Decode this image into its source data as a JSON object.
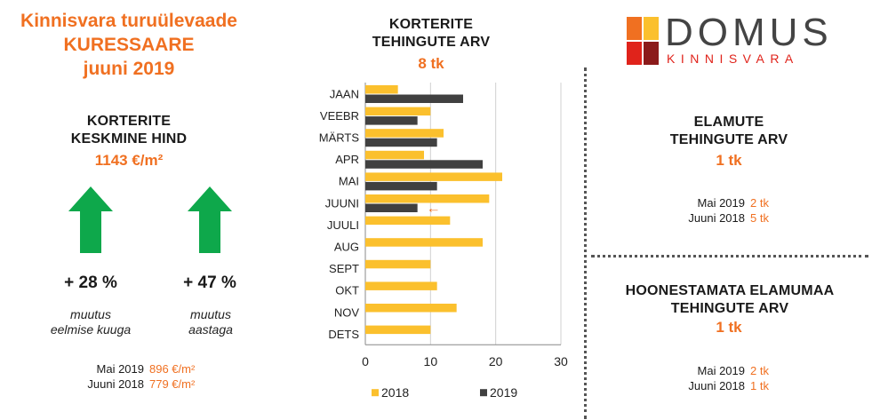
{
  "header": {
    "line1": "Kinnisvara turuülevaade",
    "line2": "KURESSAARE",
    "line3": "juuni 2019"
  },
  "avg_price": {
    "title_line1": "KORTERITE",
    "title_line2": "KESKMINE HIND",
    "value": "1143 €/m²",
    "change_month": {
      "value": "+ 28 %",
      "caption_line1": "muutus",
      "caption_line2": "eelmise kuuga",
      "direction": "up"
    },
    "change_year": {
      "value": "+ 47 %",
      "caption_line1": "muutus",
      "caption_line2": "aastaga",
      "direction": "up"
    },
    "comparisons": [
      {
        "label": "Mai 2019",
        "value": "896 €/m²"
      },
      {
        "label": "Juuni 2018",
        "value": "779 €/m²"
      }
    ]
  },
  "apartments": {
    "title_line1": "KORTERITE",
    "title_line2": "TEHINGUTE ARV",
    "value": "8 tk"
  },
  "chart_data": {
    "type": "bar",
    "orientation": "horizontal",
    "categories": [
      "JAAN",
      "VEEBR",
      "MÄRTS",
      "APR",
      "MAI",
      "JUUNI",
      "JUULI",
      "AUG",
      "SEPT",
      "OKT",
      "NOV",
      "DETS"
    ],
    "series": [
      {
        "name": "2018",
        "color": "#FBC02D",
        "values": [
          5,
          10,
          12,
          9,
          21,
          19,
          13,
          18,
          10,
          11,
          14,
          10
        ]
      },
      {
        "name": "2019",
        "color": "#404040",
        "values": [
          15,
          8,
          11,
          18,
          11,
          8,
          null,
          null,
          null,
          null,
          null,
          null
        ]
      }
    ],
    "xlim": [
      0,
      30
    ],
    "xticks": [
      0,
      10,
      20,
      30
    ],
    "grid": true,
    "legend_position": "bottom",
    "annotation": {
      "category": "JUUNI",
      "symbol": "←",
      "color": "#F07021"
    }
  },
  "logo": {
    "name": "DOMUS",
    "subtitle": "KINNISVARA",
    "colors": [
      "#F07021",
      "#FBC02D",
      "#E0231B",
      "#8B1A1A"
    ]
  },
  "houses": {
    "title_line1": "ELAMUTE",
    "title_line2": "TEHINGUTE ARV",
    "value": "1 tk",
    "comparisons": [
      {
        "label": "Mai 2019",
        "value": "2 tk"
      },
      {
        "label": "Juuni 2018",
        "value": "5 tk"
      }
    ]
  },
  "land": {
    "title_line1": "HOONESTAMATA ELAMUMAA",
    "title_line2": "TEHINGUTE ARV",
    "value": "1 tk",
    "comparisons": [
      {
        "label": "Mai 2019",
        "value": "2 tk"
      },
      {
        "label": "Juuni 2018",
        "value": "1 tk"
      }
    ]
  }
}
